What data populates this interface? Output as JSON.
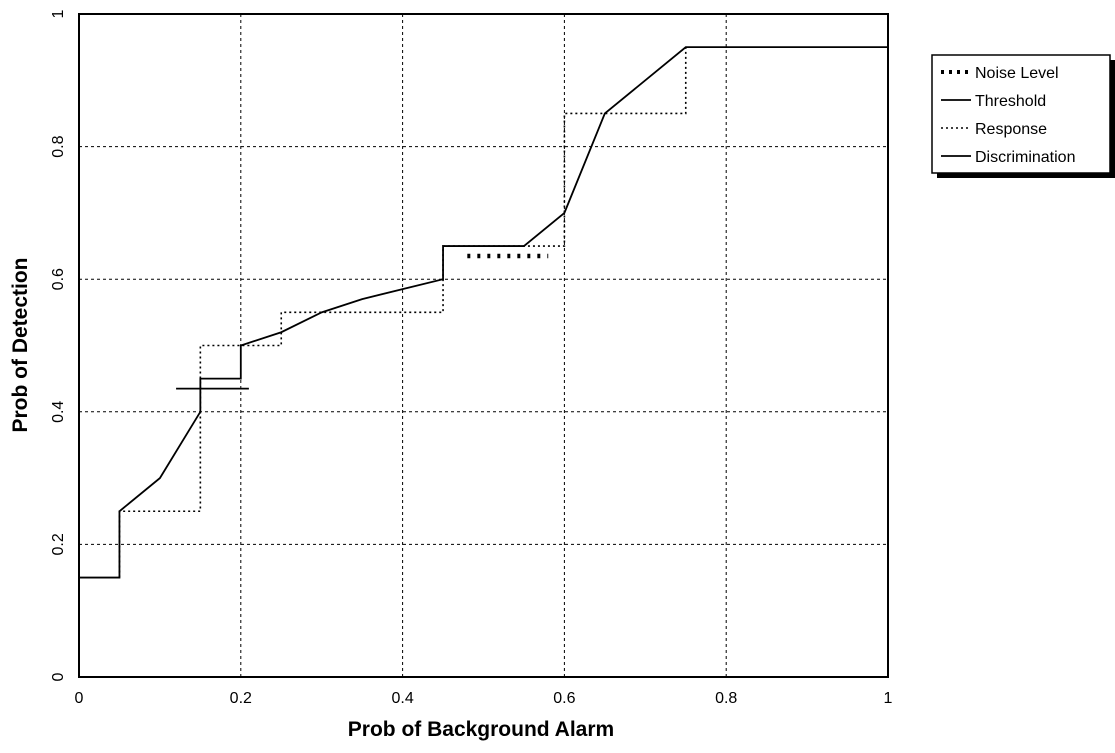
{
  "chart_data": {
    "type": "line",
    "title": "",
    "xlabel": "Prob of Background Alarm",
    "ylabel": "Prob of Detection",
    "xlim": [
      0,
      1
    ],
    "ylim": [
      0,
      1
    ],
    "x_ticks": [
      "0",
      "0.2",
      "0.4",
      "0.6",
      "0.8",
      "1"
    ],
    "y_ticks": [
      "0",
      "0.2",
      "0.4",
      "0.6",
      "0.8",
      "1"
    ],
    "grid": true,
    "legend_position": "top-right outside",
    "series": [
      {
        "name": "Noise Level",
        "style": "dotted-bold",
        "points": [
          [
            0.48,
            0.635
          ],
          [
            0.58,
            0.635
          ]
        ]
      },
      {
        "name": "Threshold",
        "style": "solid",
        "points": [
          [
            0.0,
            0.15
          ],
          [
            0.05,
            0.15
          ],
          [
            0.05,
            0.25
          ],
          [
            0.1,
            0.3
          ],
          [
            0.15,
            0.4
          ],
          [
            0.15,
            0.45
          ],
          [
            0.2,
            0.45
          ],
          [
            0.2,
            0.5
          ],
          [
            0.25,
            0.52
          ],
          [
            0.3,
            0.55
          ],
          [
            0.35,
            0.57
          ],
          [
            0.4,
            0.585
          ],
          [
            0.45,
            0.6
          ],
          [
            0.45,
            0.65
          ],
          [
            0.55,
            0.65
          ],
          [
            0.6,
            0.7
          ],
          [
            0.65,
            0.85
          ],
          [
            0.75,
            0.95
          ],
          [
            1.0,
            0.95
          ]
        ]
      },
      {
        "name": "Response",
        "style": "dotted",
        "points": [
          [
            0.05,
            0.15
          ],
          [
            0.05,
            0.25
          ],
          [
            0.15,
            0.25
          ],
          [
            0.15,
            0.5
          ],
          [
            0.2,
            0.5
          ],
          [
            0.25,
            0.5
          ],
          [
            0.25,
            0.55
          ],
          [
            0.45,
            0.55
          ],
          [
            0.45,
            0.65
          ],
          [
            0.6,
            0.65
          ],
          [
            0.6,
            0.85
          ],
          [
            0.75,
            0.85
          ],
          [
            0.75,
            0.95
          ]
        ]
      },
      {
        "name": "Discrimination",
        "style": "solid",
        "points": [
          [
            0.12,
            0.435
          ],
          [
            0.21,
            0.435
          ]
        ]
      }
    ]
  }
}
